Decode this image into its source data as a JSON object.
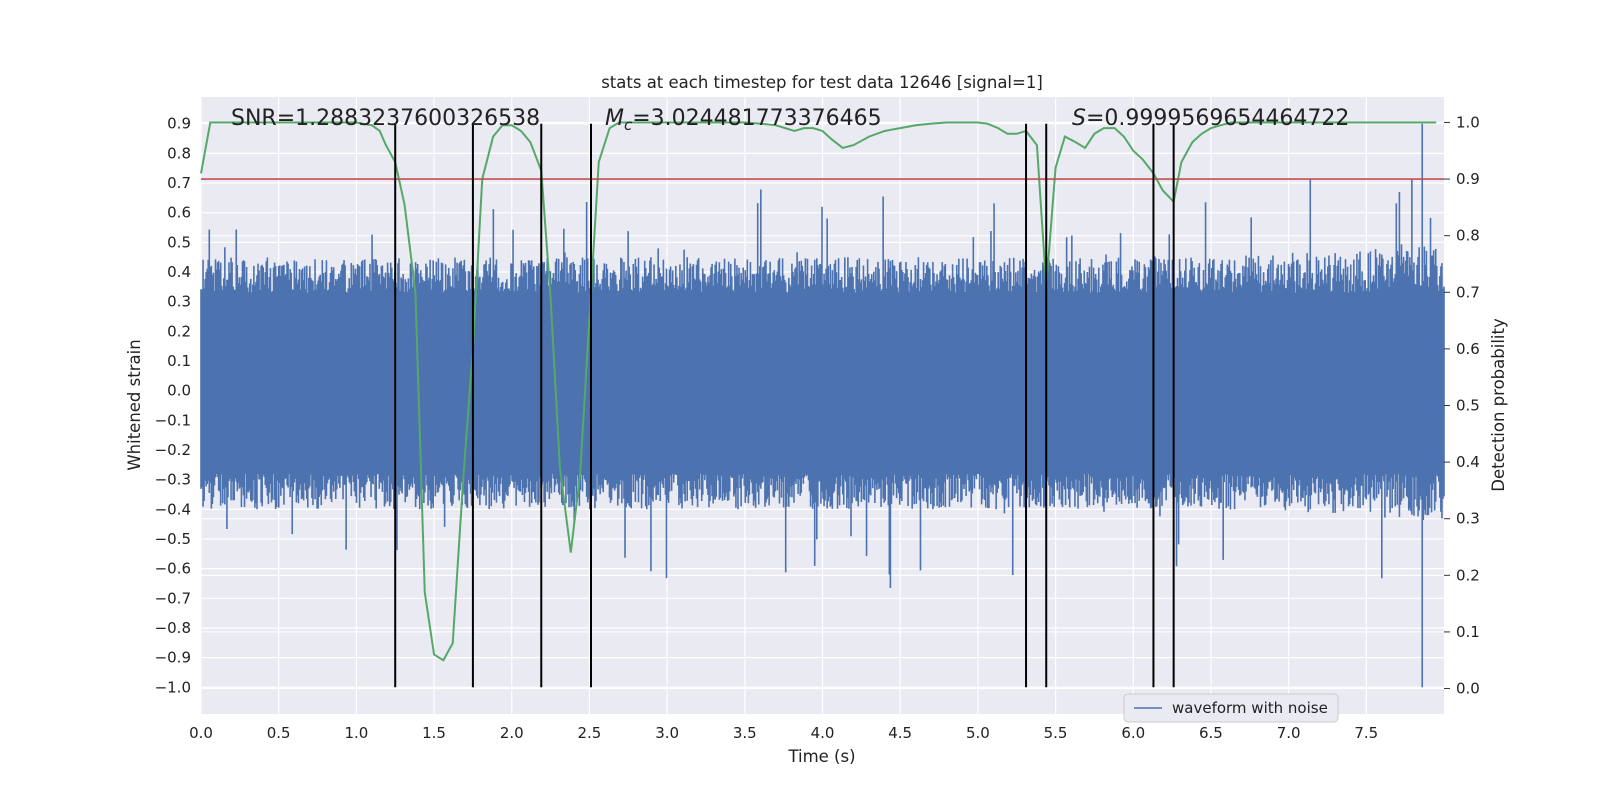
{
  "chart_data": {
    "type": "line",
    "title": "stats at each timestep for test data 12646 [signal=1]",
    "xlabel": "Time (s)",
    "ylabel": "Whitened strain",
    "y2label": "Detection probability",
    "xlim": [
      0.0,
      8.0
    ],
    "ylim": [
      -1.09,
      0.99
    ],
    "y2lim": [
      -0.045,
      1.045
    ],
    "xticks": [
      "0.0",
      "0.5",
      "1.0",
      "1.5",
      "2.0",
      "2.5",
      "3.0",
      "3.5",
      "4.0",
      "4.5",
      "5.0",
      "5.5",
      "6.0",
      "6.5",
      "7.0",
      "7.5"
    ],
    "yticks": [
      "−1.0",
      "−0.9",
      "−0.8",
      "−0.7",
      "−0.6",
      "−0.5",
      "−0.4",
      "−0.3",
      "−0.2",
      "−0.1",
      "0.0",
      "0.1",
      "0.2",
      "0.3",
      "0.4",
      "0.5",
      "0.6",
      "0.7",
      "0.8",
      "0.9"
    ],
    "y2ticks": [
      "0.0",
      "0.1",
      "0.2",
      "0.3",
      "0.4",
      "0.5",
      "0.6",
      "0.7",
      "0.8",
      "0.9",
      "1.0"
    ],
    "annotations": {
      "snr": "SNR=1.2883237600326538",
      "mc_symbol": "M",
      "mc_sub": "c",
      "mc_value": "=3.024481773376465",
      "s_symbol": "S",
      "s_value": "=0.9999569654464722"
    },
    "legend": {
      "label": "waveform with noise",
      "position": "lower-right"
    },
    "threshold": {
      "value": 0.9,
      "axis": "right",
      "color": "#c44e52"
    },
    "vlines_x": [
      1.25,
      1.75,
      2.19,
      2.51,
      5.31,
      5.44,
      6.13,
      6.26
    ],
    "vline_yrange": [
      -1.0,
      0.9
    ],
    "waveform": {
      "name": "waveform with noise",
      "color": "#4c72b0",
      "t_start": 0.0,
      "t_end": 8.0,
      "samples": 1200,
      "bulk_range": [
        -0.28,
        0.33
      ],
      "min": -1.0,
      "max": 0.9,
      "spike_t": 7.86
    },
    "detection_probability": {
      "name": "detection probability",
      "color": "#55a868",
      "x": [
        0.0,
        0.06,
        0.13,
        0.2,
        0.3,
        0.4,
        0.5,
        0.6,
        0.7,
        0.8,
        0.9,
        1.0,
        1.1,
        1.15,
        1.19,
        1.25,
        1.31,
        1.38,
        1.44,
        1.5,
        1.56,
        1.62,
        1.69,
        1.75,
        1.81,
        1.88,
        1.94,
        2.0,
        2.06,
        2.12,
        2.19,
        2.25,
        2.31,
        2.38,
        2.44,
        2.51,
        2.56,
        2.63,
        2.69,
        2.75,
        3.0,
        3.25,
        3.5,
        3.6,
        3.7,
        3.76,
        3.82,
        3.88,
        3.94,
        4.0,
        4.06,
        4.13,
        4.2,
        4.3,
        4.4,
        4.5,
        4.6,
        4.7,
        4.8,
        4.9,
        5.0,
        5.06,
        5.13,
        5.19,
        5.25,
        5.31,
        5.38,
        5.44,
        5.5,
        5.56,
        5.63,
        5.69,
        5.75,
        5.81,
        5.88,
        5.94,
        6.0,
        6.06,
        6.13,
        6.19,
        6.26,
        6.31,
        6.38,
        6.44,
        6.5,
        6.56,
        6.63,
        6.7,
        6.8,
        7.0,
        7.5,
        7.95
      ],
      "values": [
        0.91,
        1.0,
        1.0,
        1.0,
        1.0,
        1.0,
        1.0,
        1.0,
        1.0,
        1.0,
        1.0,
        1.0,
        0.995,
        0.985,
        0.96,
        0.93,
        0.855,
        0.7,
        0.17,
        0.06,
        0.05,
        0.08,
        0.38,
        0.6,
        0.9,
        0.975,
        0.995,
        0.995,
        0.985,
        0.965,
        0.915,
        0.69,
        0.39,
        0.24,
        0.38,
        0.7,
        0.93,
        0.99,
        1.0,
        1.0,
        1.0,
        1.0,
        1.0,
        0.998,
        0.995,
        0.99,
        0.985,
        0.99,
        0.99,
        0.985,
        0.97,
        0.955,
        0.96,
        0.975,
        0.985,
        0.99,
        0.995,
        0.998,
        1.0,
        1.0,
        1.0,
        0.998,
        0.99,
        0.98,
        0.98,
        0.985,
        0.96,
        0.71,
        0.92,
        0.975,
        0.965,
        0.955,
        0.98,
        0.99,
        0.99,
        0.975,
        0.95,
        0.935,
        0.91,
        0.88,
        0.86,
        0.93,
        0.965,
        0.98,
        0.99,
        0.995,
        1.0,
        1.0,
        1.0,
        1.0,
        1.0,
        1.0
      ]
    }
  }
}
